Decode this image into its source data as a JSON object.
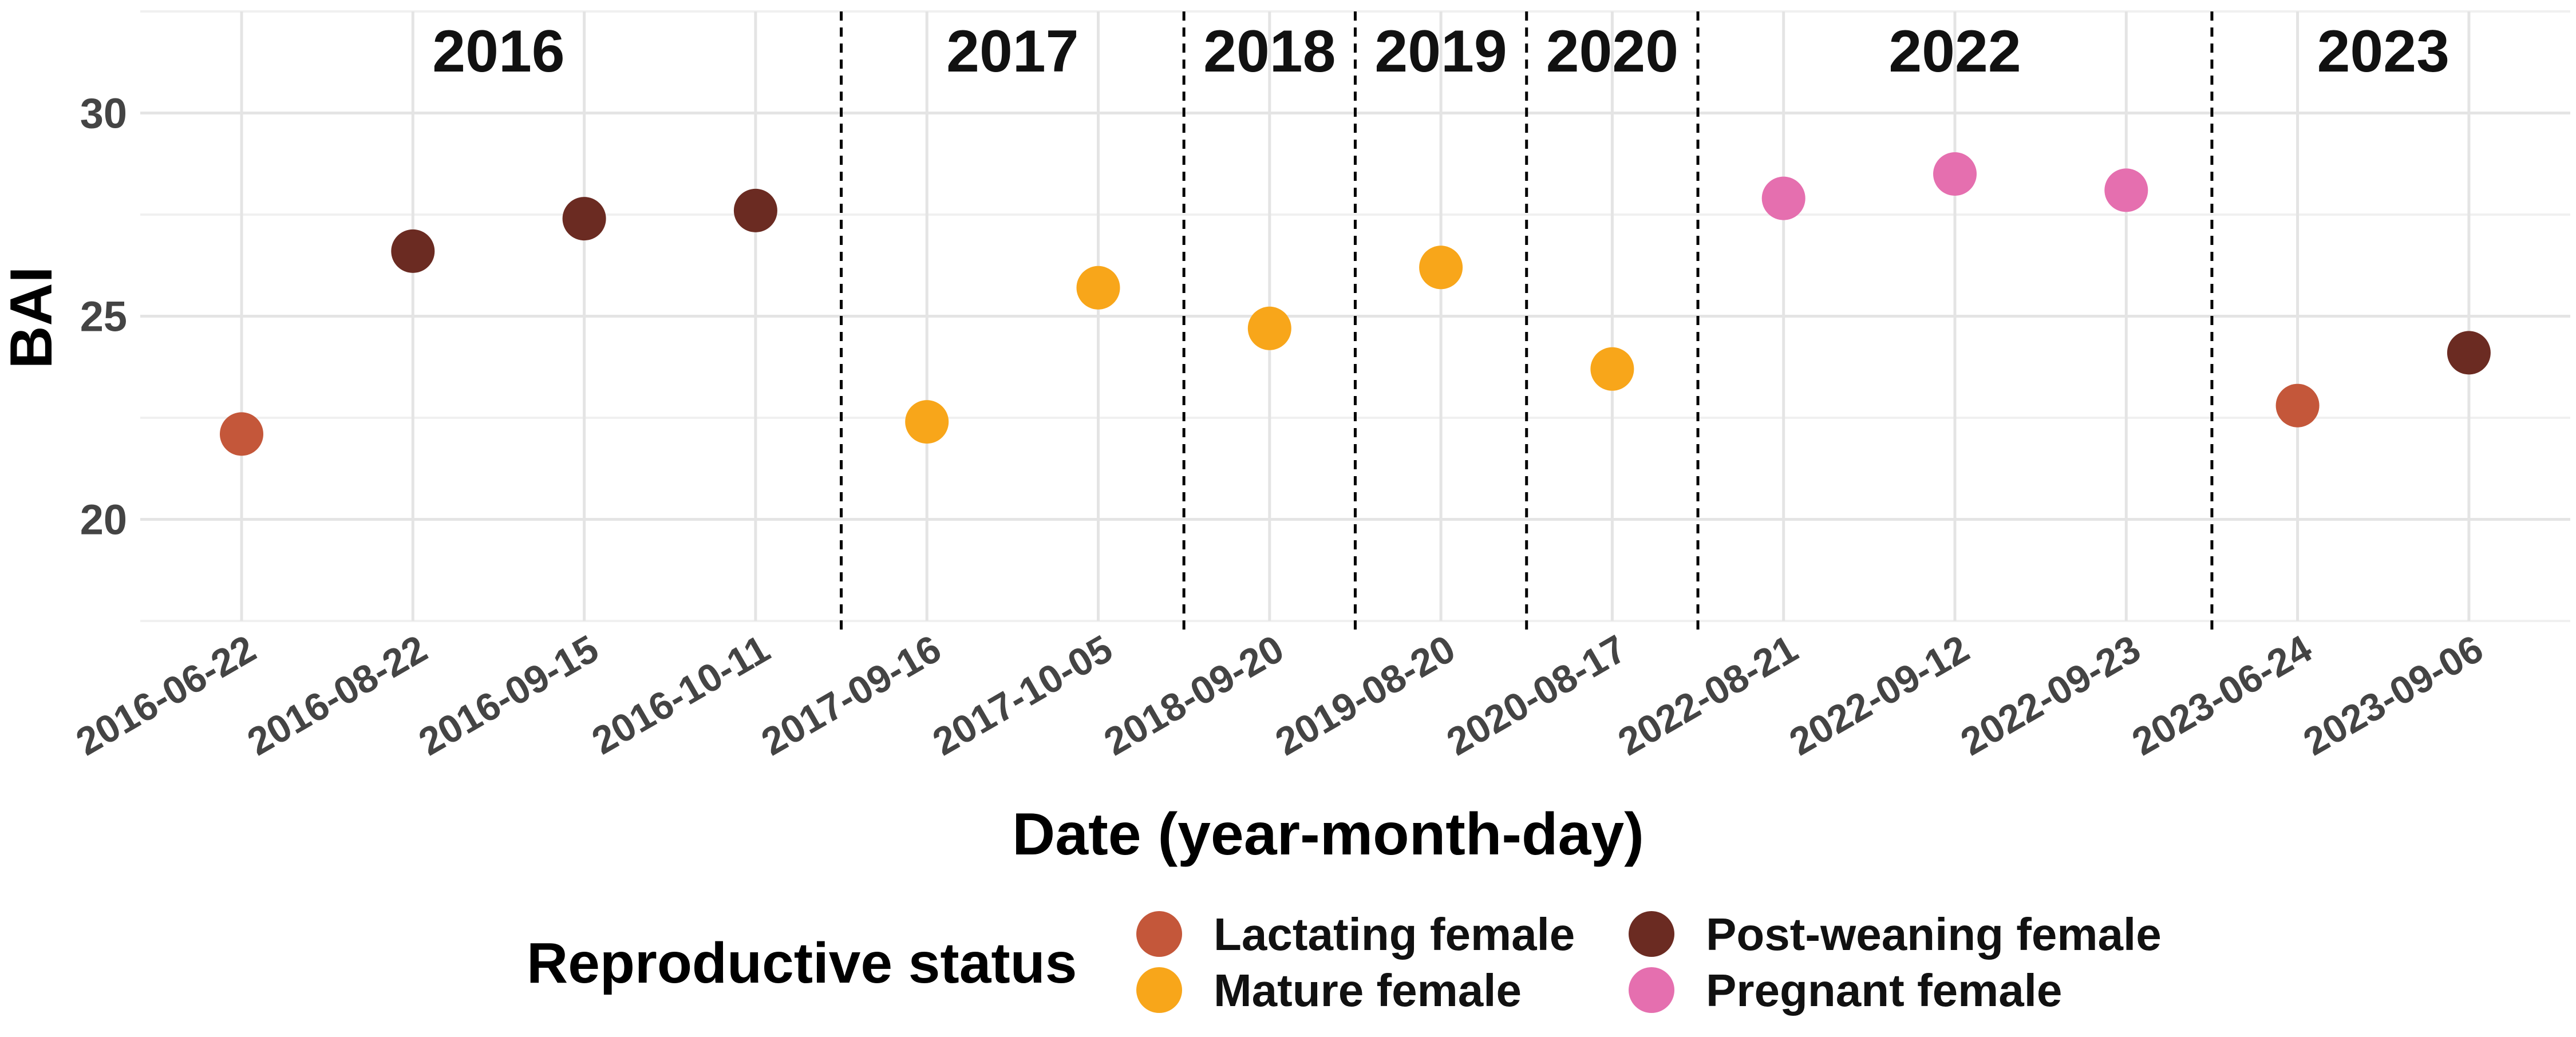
{
  "chart_data": {
    "type": "scatter",
    "xlabel": "Date (year-month-day)",
    "ylabel": "BAI",
    "ylim": [
      17.5,
      32.5
    ],
    "yticks": [
      20,
      25,
      30
    ],
    "grid": true,
    "x_categories": [
      "2016-06-22",
      "2016-08-22",
      "2016-09-15",
      "2016-10-11",
      "2017-09-16",
      "2017-10-05",
      "2018-09-20",
      "2019-08-20",
      "2020-08-17",
      "2022-08-21",
      "2022-09-12",
      "2022-09-23",
      "2023-06-24",
      "2023-09-06"
    ],
    "year_groups": [
      {
        "label": "2016",
        "count": 4
      },
      {
        "label": "2017",
        "count": 2
      },
      {
        "label": "2018",
        "count": 1
      },
      {
        "label": "2019",
        "count": 1
      },
      {
        "label": "2020",
        "count": 1
      },
      {
        "label": "2022",
        "count": 3
      },
      {
        "label": "2023",
        "count": 2
      }
    ],
    "points": [
      {
        "x": "2016-06-22",
        "y": 22.1,
        "status": "Lactating female"
      },
      {
        "x": "2016-08-22",
        "y": 26.6,
        "status": "Post-weaning female"
      },
      {
        "x": "2016-09-15",
        "y": 27.4,
        "status": "Post-weaning female"
      },
      {
        "x": "2016-10-11",
        "y": 27.6,
        "status": "Post-weaning female"
      },
      {
        "x": "2017-09-16",
        "y": 22.4,
        "status": "Mature female"
      },
      {
        "x": "2017-10-05",
        "y": 25.7,
        "status": "Mature female"
      },
      {
        "x": "2018-09-20",
        "y": 24.7,
        "status": "Mature female"
      },
      {
        "x": "2019-08-20",
        "y": 26.2,
        "status": "Mature female"
      },
      {
        "x": "2020-08-17",
        "y": 23.7,
        "status": "Mature female"
      },
      {
        "x": "2022-08-21",
        "y": 27.9,
        "status": "Pregnant female"
      },
      {
        "x": "2022-09-12",
        "y": 28.5,
        "status": "Pregnant female"
      },
      {
        "x": "2022-09-23",
        "y": 28.1,
        "status": "Pregnant female"
      },
      {
        "x": "2023-06-24",
        "y": 22.8,
        "status": "Lactating female"
      },
      {
        "x": "2023-09-06",
        "y": 24.1,
        "status": "Post-weaning female"
      }
    ],
    "legend": {
      "title": "Reproductive status",
      "placement": "bottom",
      "items": [
        {
          "label": "Lactating female",
          "color": "#C4573A"
        },
        {
          "label": "Mature female",
          "color": "#F8A61A"
        },
        {
          "label": "Post-weaning female",
          "color": "#6B2B22"
        },
        {
          "label": "Pregnant female",
          "color": "#E56FAF"
        }
      ]
    }
  }
}
